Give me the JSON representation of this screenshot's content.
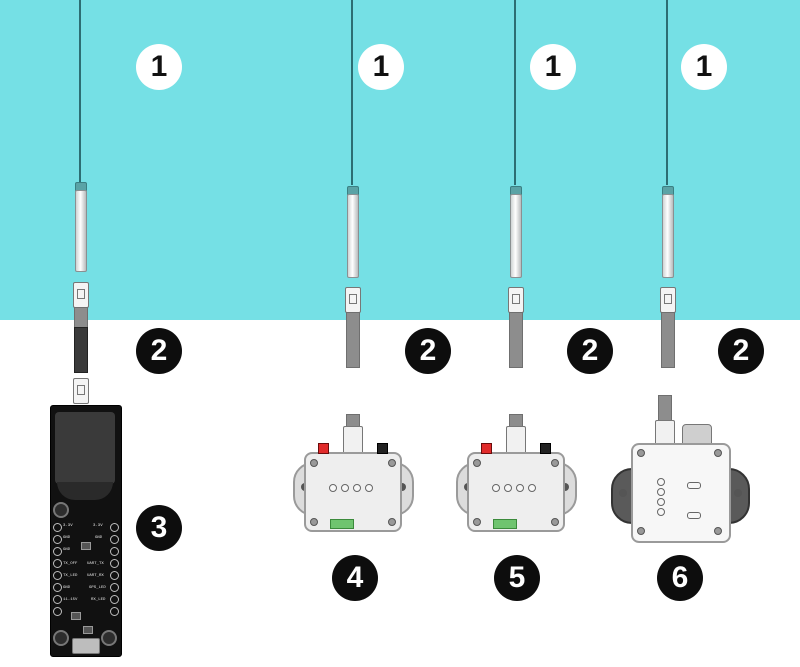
{
  "callouts": {
    "probe_1": "1",
    "probe_2": "1",
    "probe_3": "1",
    "probe_4": "1",
    "cable_1": "2",
    "cable_2": "2",
    "cable_3": "2",
    "cable_4": "2",
    "board": "3",
    "box_a": "4",
    "box_b": "5",
    "box_c": "6"
  },
  "colors": {
    "water": "#75e0e5",
    "callout_light": "#ffffff",
    "callout_dark": "#0d0d0d",
    "probe_cable": "#2c6e73"
  },
  "board_labels": {
    "l1": "3.3V",
    "r1": "3.3V",
    "l2": "GND",
    "r2": "GND",
    "l3": "GND",
    "l4": "TX_OFF",
    "r4": "UART_TX",
    "l5": "TX_LED",
    "r5": "UART_RX",
    "l6": "GND",
    "r6": "GPS_LED",
    "l7": "11-15V",
    "r7": "RX_LED"
  },
  "icons": {
    "board": "circuit-board-icon",
    "box": "junction-box-icon",
    "probe": "sensor-probe-icon"
  }
}
